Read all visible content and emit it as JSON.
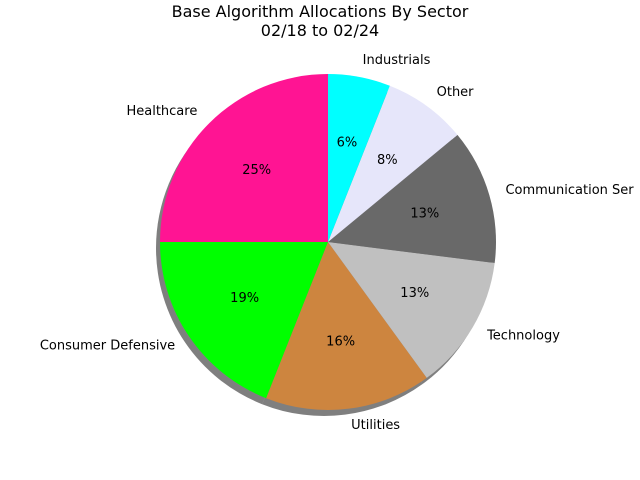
{
  "chart_data": {
    "type": "pie",
    "title": "Base Algorithm Allocations By Sector",
    "subtitle": "02/18 to 02/24",
    "shadow": true,
    "start_angle_deg": 90,
    "direction": "counterclockwise",
    "slices": [
      {
        "label": "Healthcare",
        "value": 25,
        "pct_label": "25%",
        "color": "#FF1493"
      },
      {
        "label": "Consumer Defensive",
        "value": 19,
        "pct_label": "19%",
        "color": "#00FF00"
      },
      {
        "label": "Utilities",
        "value": 16,
        "pct_label": "16%",
        "color": "#CD853F"
      },
      {
        "label": "Technology",
        "value": 13,
        "pct_label": "13%",
        "color": "#C0C0C0"
      },
      {
        "label": "Communication Ser",
        "value": 13,
        "pct_label": "13%",
        "color": "#696969"
      },
      {
        "label": "Other",
        "value": 8,
        "pct_label": "8%",
        "color": "#E6E6FA"
      },
      {
        "label": "Industrials",
        "value": 6,
        "pct_label": "6%",
        "color": "#00FFFF"
      }
    ]
  }
}
